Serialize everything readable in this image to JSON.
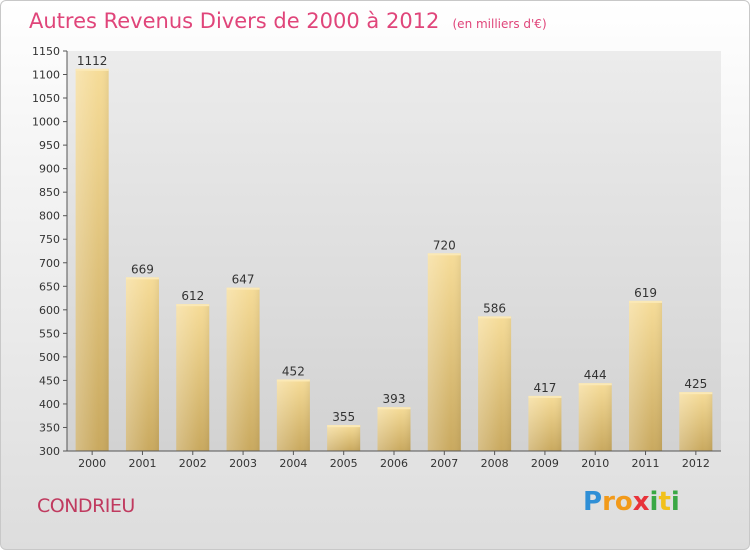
{
  "chart_data": {
    "type": "bar",
    "title": "Autres Revenus Divers de 2000 à 2012",
    "unit": "(en milliers d'€)",
    "categories": [
      "2000",
      "2001",
      "2002",
      "2003",
      "2004",
      "2005",
      "2006",
      "2007",
      "2008",
      "2009",
      "2010",
      "2011",
      "2012"
    ],
    "values": [
      1112,
      669,
      612,
      647,
      452,
      355,
      393,
      720,
      586,
      417,
      444,
      619,
      425
    ],
    "ylim": [
      300,
      1150
    ],
    "yticks": [
      300,
      350,
      400,
      450,
      500,
      550,
      600,
      650,
      700,
      750,
      800,
      850,
      900,
      950,
      1000,
      1050,
      1100,
      1150
    ],
    "grid": false,
    "bar_color": "#e8c97f"
  },
  "place": "CONDRIEU",
  "brand": {
    "letters": [
      "P",
      "r",
      "o",
      "x",
      "i",
      "t",
      "i"
    ],
    "colors": [
      "#2f8fd6",
      "#f29a1a",
      "#f29a1a",
      "#e8333a",
      "#3aa845",
      "#f2c11a",
      "#3aa845"
    ]
  }
}
